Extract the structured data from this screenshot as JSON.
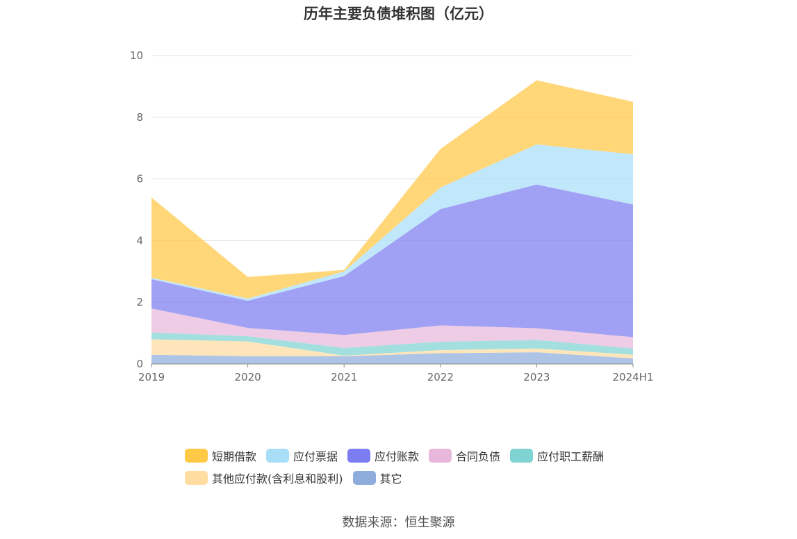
{
  "chart_data": {
    "type": "area",
    "stacked": true,
    "title": "历年主要负债堆积图（亿元）",
    "x": [
      "2019",
      "2020",
      "2021",
      "2022",
      "2023",
      "2024H1"
    ],
    "ylim": [
      0,
      10
    ],
    "yticks": [
      0,
      2,
      4,
      6,
      8,
      10
    ],
    "grid": true,
    "legend_position": "bottom",
    "series": [
      {
        "name": "其它",
        "color": "#8eaddc",
        "values": [
          0.3,
          0.25,
          0.25,
          0.35,
          0.38,
          0.18
        ]
      },
      {
        "name": "其他应付款(含利息和股利)",
        "color": "#ffdca0",
        "values": [
          0.5,
          0.48,
          0.02,
          0.1,
          0.12,
          0.12
        ]
      },
      {
        "name": "应付职工薪酬",
        "color": "#7fd3d3",
        "values": [
          0.22,
          0.17,
          0.25,
          0.27,
          0.28,
          0.2
        ]
      },
      {
        "name": "合同负债",
        "color": "#e8b8dc",
        "values": [
          0.78,
          0.27,
          0.42,
          0.53,
          0.38,
          0.37
        ]
      },
      {
        "name": "应付账款",
        "color": "#7b7df0",
        "values": [
          0.95,
          0.88,
          1.91,
          3.77,
          4.66,
          4.3
        ]
      },
      {
        "name": "应付票据",
        "color": "#a9def8",
        "values": [
          0.05,
          0.07,
          0.15,
          0.7,
          1.3,
          1.63
        ]
      },
      {
        "name": "短期借款",
        "color": "#ffc845",
        "values": [
          2.6,
          0.7,
          0.05,
          1.25,
          2.08,
          1.7
        ]
      }
    ],
    "legend_order": [
      "短期借款",
      "应付票据",
      "应付账款",
      "合同负债",
      "应付职工薪酬",
      "其他应付款(含利息和股利)",
      "其它"
    ]
  },
  "source_text": "数据来源：恒生聚源"
}
